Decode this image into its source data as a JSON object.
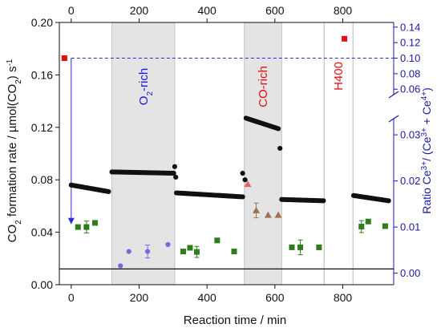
{
  "chart_data": {
    "type": "scatter",
    "xlabel": "Reaction time / min",
    "ylabel_parts": [
      "CO",
      "2",
      " formation rate / µmol(CO",
      "2",
      ") s",
      "-1"
    ],
    "y2label_parts": [
      "Ratio Ce",
      "3+",
      "/ (Ce",
      "3+",
      " + Ce",
      "4+",
      ")"
    ],
    "x_bottom": {
      "range": [
        -35,
        950
      ],
      "ticks": [
        0,
        200,
        400,
        600,
        800
      ]
    },
    "x_top": {
      "range": [
        -35,
        950
      ],
      "ticks": [
        0,
        200,
        400,
        600,
        800
      ]
    },
    "y_left": {
      "range": [
        0,
        0.2
      ],
      "ticks": [
        0.0,
        0.04,
        0.08,
        0.12,
        0.16,
        0.2
      ],
      "tick_labels": [
        "0.00",
        "0.04",
        "0.08",
        "0.12",
        "0.16",
        "0.20"
      ]
    },
    "y_right": {
      "lower_range": [
        -0.0025,
        0.0335
      ],
      "lower_ticks": [
        0.0,
        0.01,
        0.02,
        0.03
      ],
      "lower_tick_labels": [
        "0.00",
        "0.01",
        "0.02",
        "0.03"
      ],
      "upper_range": [
        0.053,
        0.146
      ],
      "upper_ticks": [
        0.06,
        0.08,
        0.1,
        0.12,
        0.14
      ],
      "upper_tick_labels": [
        "0.06",
        "0.08",
        "0.10",
        "0.12",
        "0.14"
      ]
    },
    "baseline_y": 0.012,
    "shaded_regions": [
      {
        "from": 120,
        "to": 305,
        "label_parts": [
          "O",
          "2",
          "-rich"
        ],
        "color": "#1a1ad8"
      },
      {
        "from": 510,
        "to": 620,
        "label_parts": [
          "CO-rich"
        ],
        "color": "#e01010"
      }
    ],
    "vertical_lines": [
      745,
      830
    ],
    "h400_label": "H400",
    "h400_color": "#e01010",
    "reference_line_y2": 0.1,
    "arrow": {
      "x": 0,
      "from_y2": 0.1,
      "to_y": 0.046
    },
    "series": [
      {
        "marker": "circle",
        "color": "#111111",
        "axis": "left",
        "segments": [
          {
            "x_start": 0,
            "x_end": 110,
            "y_start": 0.076,
            "y_end": 0.071,
            "n": 25
          },
          {
            "x_start": 120,
            "x_end": 302,
            "y_start": 0.086,
            "y_end": 0.085,
            "n": 40
          },
          {
            "x_start": 310,
            "x_end": 505,
            "y_start": 0.07,
            "y_end": 0.067,
            "n": 42
          },
          {
            "x_start": 515,
            "x_end": 610,
            "y_start": 0.127,
            "y_end": 0.119,
            "n": 22
          },
          {
            "x_start": 620,
            "x_end": 743,
            "y_start": 0.065,
            "y_end": 0.064,
            "n": 27
          },
          {
            "x_start": 832,
            "x_end": 935,
            "y_start": 0.068,
            "y_end": 0.064,
            "n": 22
          }
        ],
        "extra_points": [
          [
            305,
            0.09
          ],
          [
            308,
            0.082
          ],
          [
            505,
            0.085
          ],
          [
            512,
            0.08
          ],
          [
            615,
            0.104
          ]
        ]
      },
      {
        "marker": "square",
        "color": "#2e7d1a",
        "axis": "right_lower",
        "points": [
          [
            20,
            0.01
          ],
          [
            45,
            0.01
          ],
          [
            70,
            0.0109
          ],
          [
            330,
            0.0047
          ],
          [
            350,
            0.0055
          ],
          [
            370,
            0.0046
          ],
          [
            430,
            0.0071
          ],
          [
            480,
            0.0047
          ],
          [
            650,
            0.0056
          ],
          [
            675,
            0.0056
          ],
          [
            730,
            0.0056
          ],
          [
            855,
            0.0101
          ],
          [
            875,
            0.0112
          ],
          [
            925,
            0.0102
          ]
        ],
        "error_bars": [
          [
            45,
            0.01,
            0.0013
          ],
          [
            370,
            0.0046,
            0.0012
          ],
          [
            675,
            0.0056,
            0.0016
          ],
          [
            855,
            0.0101,
            0.0013
          ]
        ]
      },
      {
        "marker": "circle",
        "color": "#7a68e0",
        "axis": "right_lower",
        "points": [
          [
            145,
            0.0016
          ],
          [
            170,
            0.0047
          ],
          [
            225,
            0.0047
          ],
          [
            285,
            0.0062
          ]
        ],
        "error_bars": [
          [
            225,
            0.0047,
            0.0014
          ]
        ]
      },
      {
        "marker": "triangle",
        "color": "#e86060",
        "axis": "right_lower",
        "points": [
          [
            520,
            0.0193
          ]
        ]
      },
      {
        "marker": "triangle",
        "color": "#a07050",
        "axis": "right_lower",
        "points": [
          [
            545,
            0.0136
          ],
          [
            580,
            0.0126
          ],
          [
            610,
            0.0126
          ]
        ],
        "error_bars": [
          [
            545,
            0.0136,
            0.0016
          ]
        ]
      },
      {
        "marker": "square",
        "color": "#e01010",
        "axis": "right_upper",
        "points": [
          [
            -20,
            0.1
          ],
          [
            805,
            0.125
          ]
        ]
      }
    ]
  }
}
